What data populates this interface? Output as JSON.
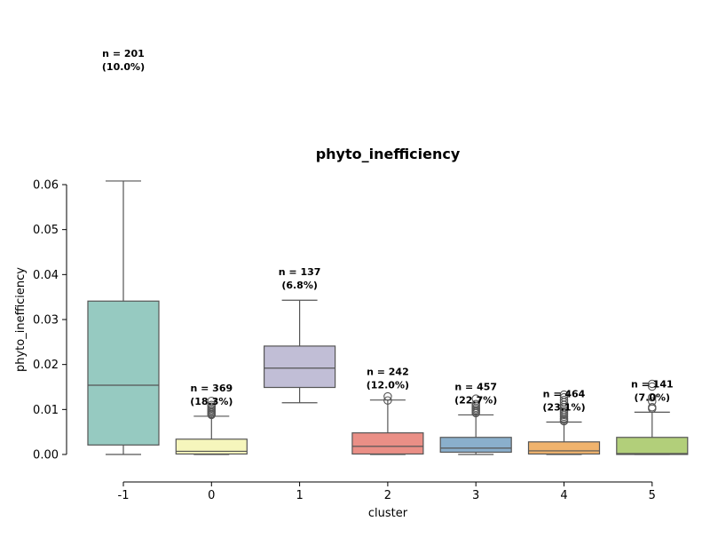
{
  "chart_data": {
    "type": "box",
    "title": "phyto_inefficiency",
    "xlabel": "cluster",
    "ylabel": "phyto_inefficiency",
    "ylim": [
      -0.0005,
      0.0605
    ],
    "y_ticks": [
      "0.00",
      "0.01",
      "0.02",
      "0.03",
      "0.04",
      "0.05",
      "0.06"
    ],
    "y_tick_values": [
      0,
      0.01,
      0.02,
      0.03,
      0.04,
      0.05,
      0.06
    ],
    "grid": false,
    "legend": "none",
    "categories": [
      "-1",
      "0",
      "1",
      "2",
      "3",
      "4",
      "5"
    ],
    "boxes": [
      {
        "category": "-1",
        "color": "#96cac1",
        "whisker_low": 0.0,
        "q1": 0.0021,
        "median": 0.0154,
        "q3": 0.0341,
        "whisker_high": 0.0608,
        "outliers": [],
        "count_line1": "n = 201",
        "count_line2": "(10.0%)"
      },
      {
        "category": "0",
        "color": "#f6f6bc",
        "whisker_low": 0.0,
        "q1": 0.0001,
        "median": 0.0007,
        "q3": 0.0034,
        "whisker_high": 0.0085,
        "outliers": [
          0.0088,
          0.009,
          0.0093,
          0.0096,
          0.0099,
          0.0102,
          0.0106,
          0.011,
          0.0119
        ],
        "count_line1": "n = 369",
        "count_line2": "(18.3%)"
      },
      {
        "category": "1",
        "color": "#c1bed6",
        "whisker_low": 0.0115,
        "q1": 0.0149,
        "median": 0.0192,
        "q3": 0.0241,
        "whisker_high": 0.0343,
        "outliers": [],
        "count_line1": "n = 137",
        "count_line2": "(6.8%)"
      },
      {
        "category": "2",
        "color": "#ea8f86",
        "whisker_low": 0.0,
        "q1": 0.0001,
        "median": 0.0018,
        "q3": 0.0048,
        "whisker_high": 0.0121,
        "outliers": [
          0.012,
          0.0129
        ],
        "count_line1": "n = 242",
        "count_line2": "(12.0%)"
      },
      {
        "category": "3",
        "color": "#8aafcc",
        "whisker_low": 0.0,
        "q1": 0.0005,
        "median": 0.0014,
        "q3": 0.0038,
        "whisker_high": 0.0088,
        "outliers": [
          0.0092,
          0.0095,
          0.0098,
          0.0101,
          0.0104,
          0.0108,
          0.0112,
          0.0124
        ],
        "count_line1": "n = 457",
        "count_line2": "(22.7%)"
      },
      {
        "category": "4",
        "color": "#f0b36d",
        "whisker_low": 0.0,
        "q1": 0.0001,
        "median": 0.0008,
        "q3": 0.0028,
        "whisker_high": 0.0072,
        "outliers": [
          0.0074,
          0.0077,
          0.008,
          0.0084,
          0.0088,
          0.0092,
          0.0096,
          0.01,
          0.0105,
          0.011,
          0.0116,
          0.0121,
          0.0127,
          0.0133
        ],
        "count_line1": "n = 464",
        "count_line2": "(23.1%)"
      },
      {
        "category": "5",
        "color": "#b2cf7a",
        "whisker_low": 0.0,
        "q1": 0.0,
        "median": 0.0002,
        "q3": 0.0038,
        "whisker_high": 0.0094,
        "outliers": [
          0.0102,
          0.0105,
          0.0118,
          0.0127,
          0.0151,
          0.0157
        ],
        "count_line1": "n = 141",
        "count_line2": "(7.0%)"
      }
    ]
  }
}
